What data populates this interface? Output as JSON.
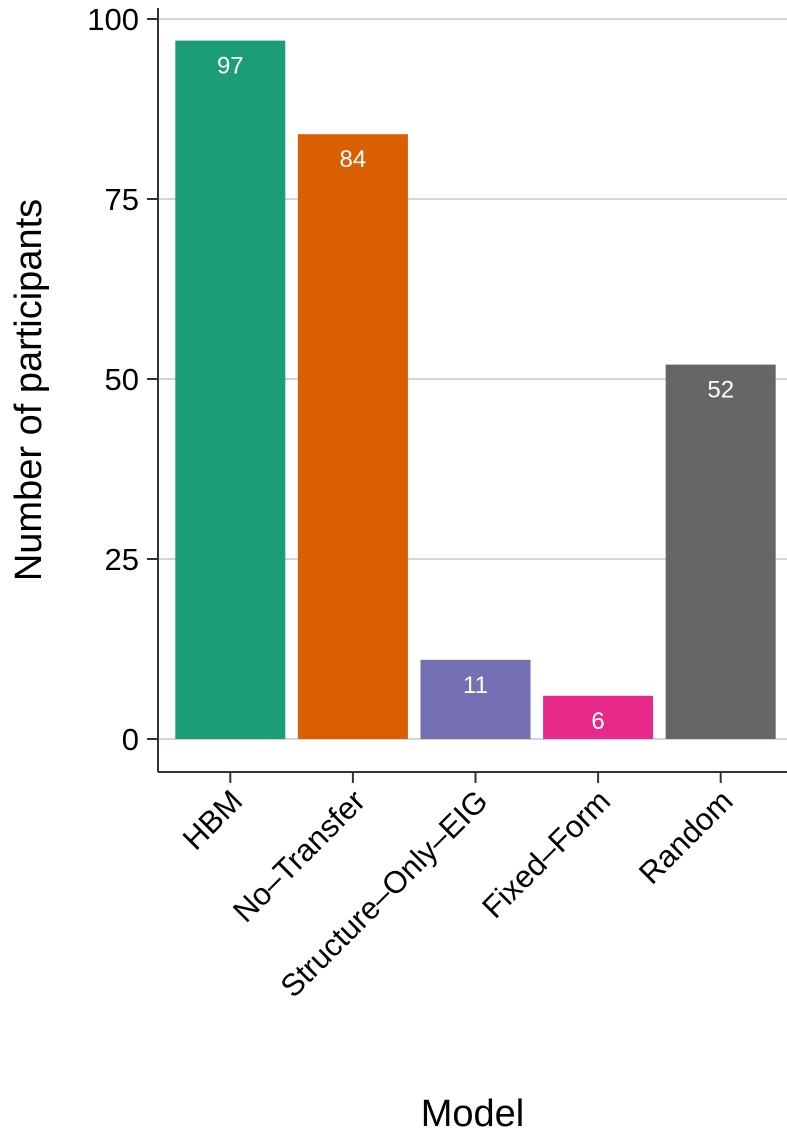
{
  "chart_data": {
    "type": "bar",
    "title": "",
    "xlabel": "Model",
    "ylabel": "Number of participants",
    "categories": [
      "HBM",
      "No–Transfer",
      "Structure–Only–EIG",
      "Fixed–Form",
      "Random"
    ],
    "values": [
      97,
      84,
      11,
      6,
      52
    ],
    "data_labels": [
      "97",
      "84",
      "11",
      "6",
      "52"
    ],
    "colors": [
      "#1b9e77",
      "#d95f02",
      "#7570b3",
      "#e7298a",
      "#666666"
    ],
    "ylim": [
      0,
      100
    ],
    "yticks": [
      0,
      25,
      50,
      75,
      100
    ],
    "ytick_labels": [
      "0",
      "25",
      "50",
      "75",
      "100"
    ],
    "grid": "horizontal major",
    "legend": "none"
  }
}
